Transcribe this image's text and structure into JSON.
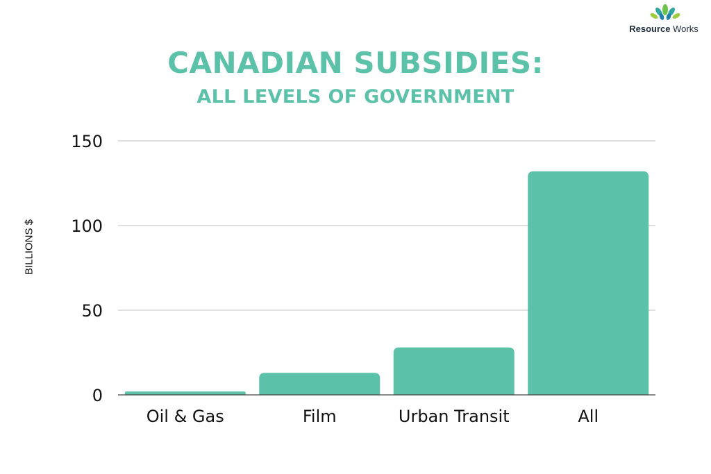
{
  "brand": {
    "name_bold": "Resource",
    "name_rest": " Works",
    "color": "#5bc2a9"
  },
  "chart_data": {
    "type": "bar",
    "title": "CANADIAN SUBSIDIES:",
    "subtitle": "ALL LEVELS OF GOVERNMENT",
    "xlabel": "",
    "ylabel": "BILLIONS $",
    "categories": [
      "Oil & Gas",
      "Film",
      "Urban Transit",
      "All"
    ],
    "values": [
      2,
      13,
      28,
      132
    ],
    "ylim": [
      0,
      150
    ],
    "yticks": [
      0,
      50,
      100,
      150
    ],
    "grid": true,
    "bar_color": "#5bc2a9",
    "grid_color": "#cccccc"
  }
}
